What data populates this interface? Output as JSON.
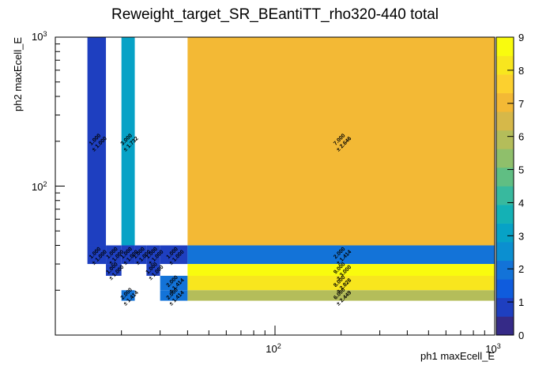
{
  "chart_data": {
    "type": "heatmap",
    "title": "Reweight_target_SR_BEantiTT_rho320-440 total",
    "xlabel": "ph1 maxEcell_E",
    "ylabel": "ph2 maxEcell_E",
    "xscale": "log",
    "yscale": "log",
    "xlim": [
      10,
      1000
    ],
    "ylim": [
      10,
      1000
    ],
    "x_tick_labels": [
      "10^2",
      "10^3"
    ],
    "y_tick_labels": [
      "10^2",
      "10^3"
    ],
    "x_edges": [
      14,
      17,
      20,
      23,
      26,
      30,
      40,
      1000
    ],
    "y_edges": [
      12,
      17,
      20,
      25,
      30,
      40,
      1000
    ],
    "cells": [
      {
        "xi": 0,
        "yi": 5,
        "value": 1,
        "error": 1.0,
        "label": "1.000",
        "elabel": "± 1.000"
      },
      {
        "xi": 2,
        "yi": 5,
        "value": 3,
        "error": 1.732,
        "label": "3.000",
        "elabel": "± 1.732"
      },
      {
        "xi": 6,
        "yi": 5,
        "value": 7,
        "error": 2.646,
        "label": "7.000",
        "elabel": "± 2.646"
      },
      {
        "xi": 0,
        "yi": 4,
        "value": 1,
        "error": 1.0,
        "label": "1.000",
        "elabel": "± 1.000"
      },
      {
        "xi": 1,
        "yi": 4,
        "value": 1,
        "error": 1.0,
        "label": "1.000",
        "elabel": "± 1.000"
      },
      {
        "xi": 2,
        "yi": 4,
        "value": 1,
        "error": 1.0,
        "label": "1.000",
        "elabel": "± 1.000"
      },
      {
        "xi": 3,
        "yi": 4,
        "value": 1,
        "error": 1.0,
        "label": "1.000",
        "elabel": "± 1.000"
      },
      {
        "xi": 4,
        "yi": 4,
        "value": 1,
        "error": 1.0,
        "label": "1.000",
        "elabel": "± 1.000"
      },
      {
        "xi": 5,
        "yi": 4,
        "value": 1,
        "error": 1.0,
        "label": "1.000",
        "elabel": "± 1.000"
      },
      {
        "xi": 6,
        "yi": 4,
        "value": 2,
        "error": 1.414,
        "label": "2.000",
        "elabel": "± 1.414"
      },
      {
        "xi": 1,
        "yi": 3,
        "value": 1,
        "error": 1.0,
        "label": "1.000",
        "elabel": "± 1.000"
      },
      {
        "xi": 4,
        "yi": 3,
        "value": 1,
        "error": 1.0,
        "label": "1.000",
        "elabel": "± 1.000"
      },
      {
        "xi": 6,
        "yi": 3,
        "value": 9,
        "error": 3.0,
        "label": "9.000",
        "elabel": "± 3.000"
      },
      {
        "xi": 5,
        "yi": 2,
        "value": 2,
        "error": 1.414,
        "label": "2.000",
        "elabel": "± 1.414"
      },
      {
        "xi": 6,
        "yi": 2,
        "value": 8,
        "error": 2.828,
        "label": "8.000",
        "elabel": "± 2.828"
      },
      {
        "xi": 2,
        "yi": 1,
        "value": 2,
        "error": 1.414,
        "label": "2.000",
        "elabel": "± 1.414"
      },
      {
        "xi": 5,
        "yi": 1,
        "value": 2,
        "error": 1.414,
        "label": "2.000",
        "elabel": "± 1.414"
      },
      {
        "xi": 6,
        "yi": 1,
        "value": 6,
        "error": 2.449,
        "label": "6.000",
        "elabel": "± 2.449"
      }
    ],
    "color_scale": {
      "min": 0,
      "max": 9,
      "tick_labels": [
        "0",
        "1",
        "2",
        "3",
        "4",
        "5",
        "6",
        "7",
        "8",
        "9"
      ],
      "colors": [
        "#352a87",
        "#1e3fc0",
        "#0f5cdd",
        "#1373d8",
        "#0b8fd0",
        "#07a2c6",
        "#14b1b5",
        "#38b99e",
        "#60be83",
        "#8fbf6b",
        "#b4bd5a",
        "#d6b849",
        "#f3b935",
        "#fcd02f",
        "#f8e61e",
        "#f9fb0e"
      ]
    }
  }
}
